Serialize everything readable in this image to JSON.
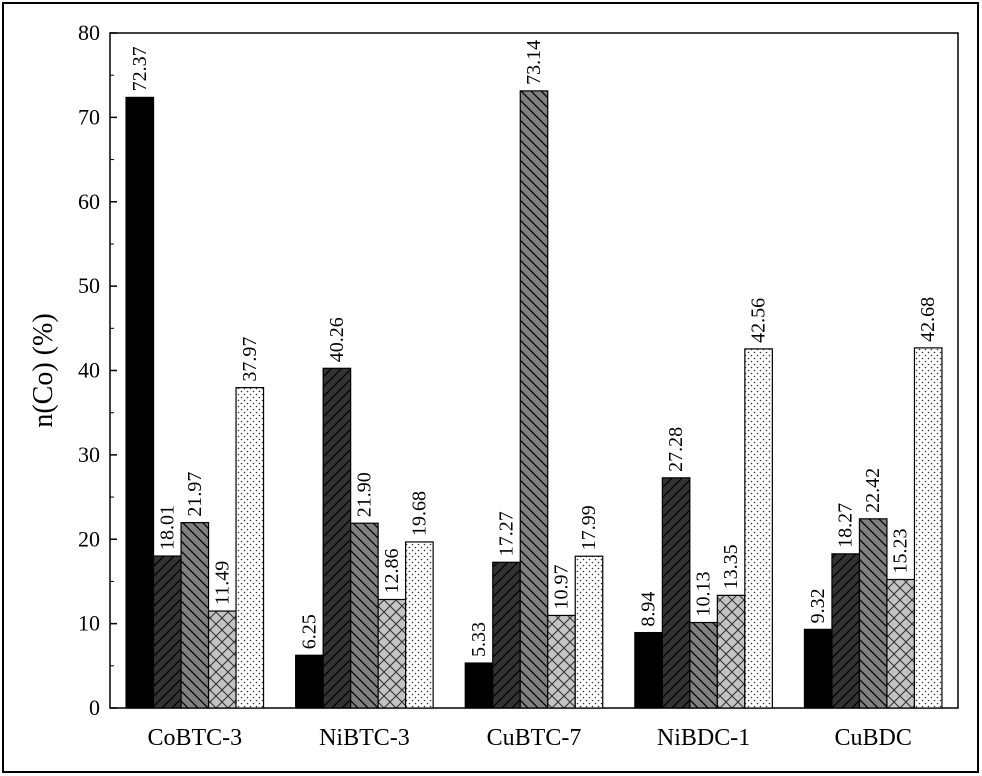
{
  "chart_data": {
    "type": "bar",
    "title": "",
    "xlabel": "",
    "ylabel": "n(Co) (%)",
    "ylim": [
      0,
      80
    ],
    "yticks": [
      0,
      10,
      20,
      30,
      40,
      50,
      60,
      70,
      80
    ],
    "grid": false,
    "legend": "none",
    "categories": [
      "CoBTC-3",
      "NiBTC-3",
      "CuBTC-7",
      "NiBDC-1",
      "CuBDC"
    ],
    "series": [
      {
        "values": [
          72.37,
          6.25,
          5.33,
          8.94,
          9.32
        ],
        "labels": [
          "72.37",
          "6.25",
          "5.33",
          "8.94",
          "9.32"
        ],
        "fill": "#000000",
        "pattern": "solid"
      },
      {
        "values": [
          18.01,
          40.26,
          17.27,
          27.28,
          18.27
        ],
        "labels": [
          "18.01",
          "40.26",
          "17.27",
          "27.28",
          "18.27"
        ],
        "fill": "#333333",
        "pattern": "forward-diagonal"
      },
      {
        "values": [
          21.97,
          21.9,
          73.14,
          10.13,
          22.42
        ],
        "labels": [
          "21.97",
          "21.90",
          "73.14",
          "10.13",
          "22.42"
        ],
        "fill": "#808080",
        "pattern": "back-diagonal"
      },
      {
        "values": [
          11.49,
          12.86,
          10.97,
          13.35,
          15.23
        ],
        "labels": [
          "11.49",
          "12.86",
          "10.97",
          "13.35",
          "15.23"
        ],
        "fill": "#c4c4c4",
        "pattern": "crosshatch"
      },
      {
        "values": [
          37.97,
          19.68,
          17.99,
          42.56,
          42.68
        ],
        "labels": [
          "37.97",
          "19.68",
          "17.99",
          "42.56",
          "42.68"
        ],
        "fill": "#ffffff",
        "pattern": "dots"
      }
    ]
  }
}
